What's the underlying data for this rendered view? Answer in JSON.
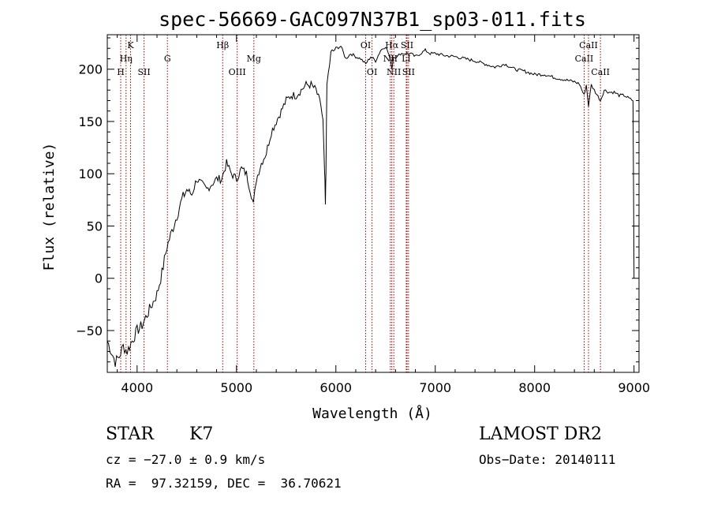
{
  "chart_data": {
    "type": "line",
    "title": "spec-56669-GAC097N37B1_sp03-011.fits",
    "xlabel": "Wavelength (Å)",
    "ylabel": "Flux (relative)",
    "xlim": [
      3700,
      9050
    ],
    "ylim": [
      -90,
      233
    ],
    "xticks": [
      4000,
      5000,
      6000,
      7000,
      8000,
      9000
    ],
    "yticks": [
      -50,
      0,
      50,
      100,
      150,
      200
    ],
    "grid": false,
    "series": [
      {
        "x": [
          3700,
          3740,
          3780,
          3820,
          3860,
          3900,
          3950,
          4000,
          4050,
          4100,
          4150,
          4200,
          4250,
          4300,
          4350,
          4400,
          4450,
          4500,
          4550,
          4600,
          4650,
          4700,
          4750,
          4800,
          4850,
          4900,
          4950,
          5000,
          5050,
          5100,
          5150,
          5170,
          5200,
          5250,
          5300,
          5350,
          5400,
          5450,
          5500,
          5550,
          5600,
          5650,
          5700,
          5750,
          5800,
          5850,
          5870,
          5880,
          5890,
          5895,
          5900,
          5910,
          5950,
          6000,
          6050,
          6100,
          6150,
          6200,
          6250,
          6300,
          6350,
          6400,
          6450,
          6500,
          6550,
          6563,
          6580,
          6620,
          6650,
          6700,
          6750,
          6800,
          6850,
          6900,
          6950,
          7000,
          7100,
          7200,
          7300,
          7400,
          7500,
          7600,
          7700,
          7800,
          7900,
          8000,
          8100,
          8200,
          8300,
          8400,
          8450,
          8498,
          8520,
          8542,
          8570,
          8600,
          8662,
          8700,
          8750,
          8800,
          8850,
          8900,
          8950,
          8990,
          9000
        ],
        "values": [
          -60,
          -70,
          -80,
          -75,
          -65,
          -70,
          -60,
          -50,
          -45,
          -35,
          -25,
          -15,
          5,
          30,
          45,
          60,
          75,
          85,
          80,
          95,
          90,
          85,
          90,
          95,
          95,
          110,
          100,
          95,
          105,
          100,
          80,
          70,
          95,
          110,
          120,
          140,
          150,
          160,
          170,
          175,
          175,
          180,
          185,
          185,
          180,
          165,
          150,
          120,
          90,
          68,
          105,
          185,
          215,
          220,
          222,
          210,
          215,
          212,
          210,
          205,
          212,
          208,
          218,
          222,
          210,
          200,
          212,
          212,
          215,
          215,
          215,
          212,
          215,
          218,
          215,
          215,
          213,
          212,
          210,
          208,
          205,
          202,
          205,
          200,
          198,
          195,
          195,
          192,
          190,
          188,
          186,
          175,
          185,
          165,
          185,
          180,
          170,
          180,
          178,
          178,
          175,
          175,
          172,
          170,
          0
        ]
      }
    ],
    "line_markers": [
      {
        "label": "H",
        "x": 3835,
        "row": 2
      },
      {
        "label": "Hη",
        "x": 3889,
        "row": 1
      },
      {
        "label": "K",
        "x": 3934,
        "row": 0
      },
      {
        "label": "SII",
        "x": 4070,
        "row": 2
      },
      {
        "label": "G",
        "x": 4305,
        "row": 1
      },
      {
        "label": "Hβ",
        "x": 4861,
        "row": 0
      },
      {
        "label": "OIII",
        "x": 5007,
        "row": 2
      },
      {
        "label": "Mg",
        "x": 5175,
        "row": 1
      },
      {
        "label": "OI",
        "x": 6300,
        "row": 0
      },
      {
        "label": "OI",
        "x": 6364,
        "row": 2
      },
      {
        "label": "Hα",
        "x": 6563,
        "row": 0
      },
      {
        "label": "NII",
        "x": 6548,
        "row": 1
      },
      {
        "label": "NII",
        "x": 6583,
        "row": 2
      },
      {
        "label": "SII",
        "x": 6716,
        "row": 0
      },
      {
        "label": "LI",
        "x": 6708,
        "row": 1
      },
      {
        "label": "SII",
        "x": 6731,
        "row": 2
      },
      {
        "label": "CaII",
        "x": 8498,
        "row": 1
      },
      {
        "label": "CaII",
        "x": 8542,
        "row": 0
      },
      {
        "label": "CaII",
        "x": 8662,
        "row": 2
      }
    ]
  },
  "info": {
    "class": "STAR",
    "subclass": "K7",
    "survey": "LAMOST DR2",
    "cz": "cz = −27.0 ± 0.9 km/s",
    "obs_date": "Obs−Date: 20140111",
    "coords": "RA =  97.32159, DEC =  36.70621"
  }
}
